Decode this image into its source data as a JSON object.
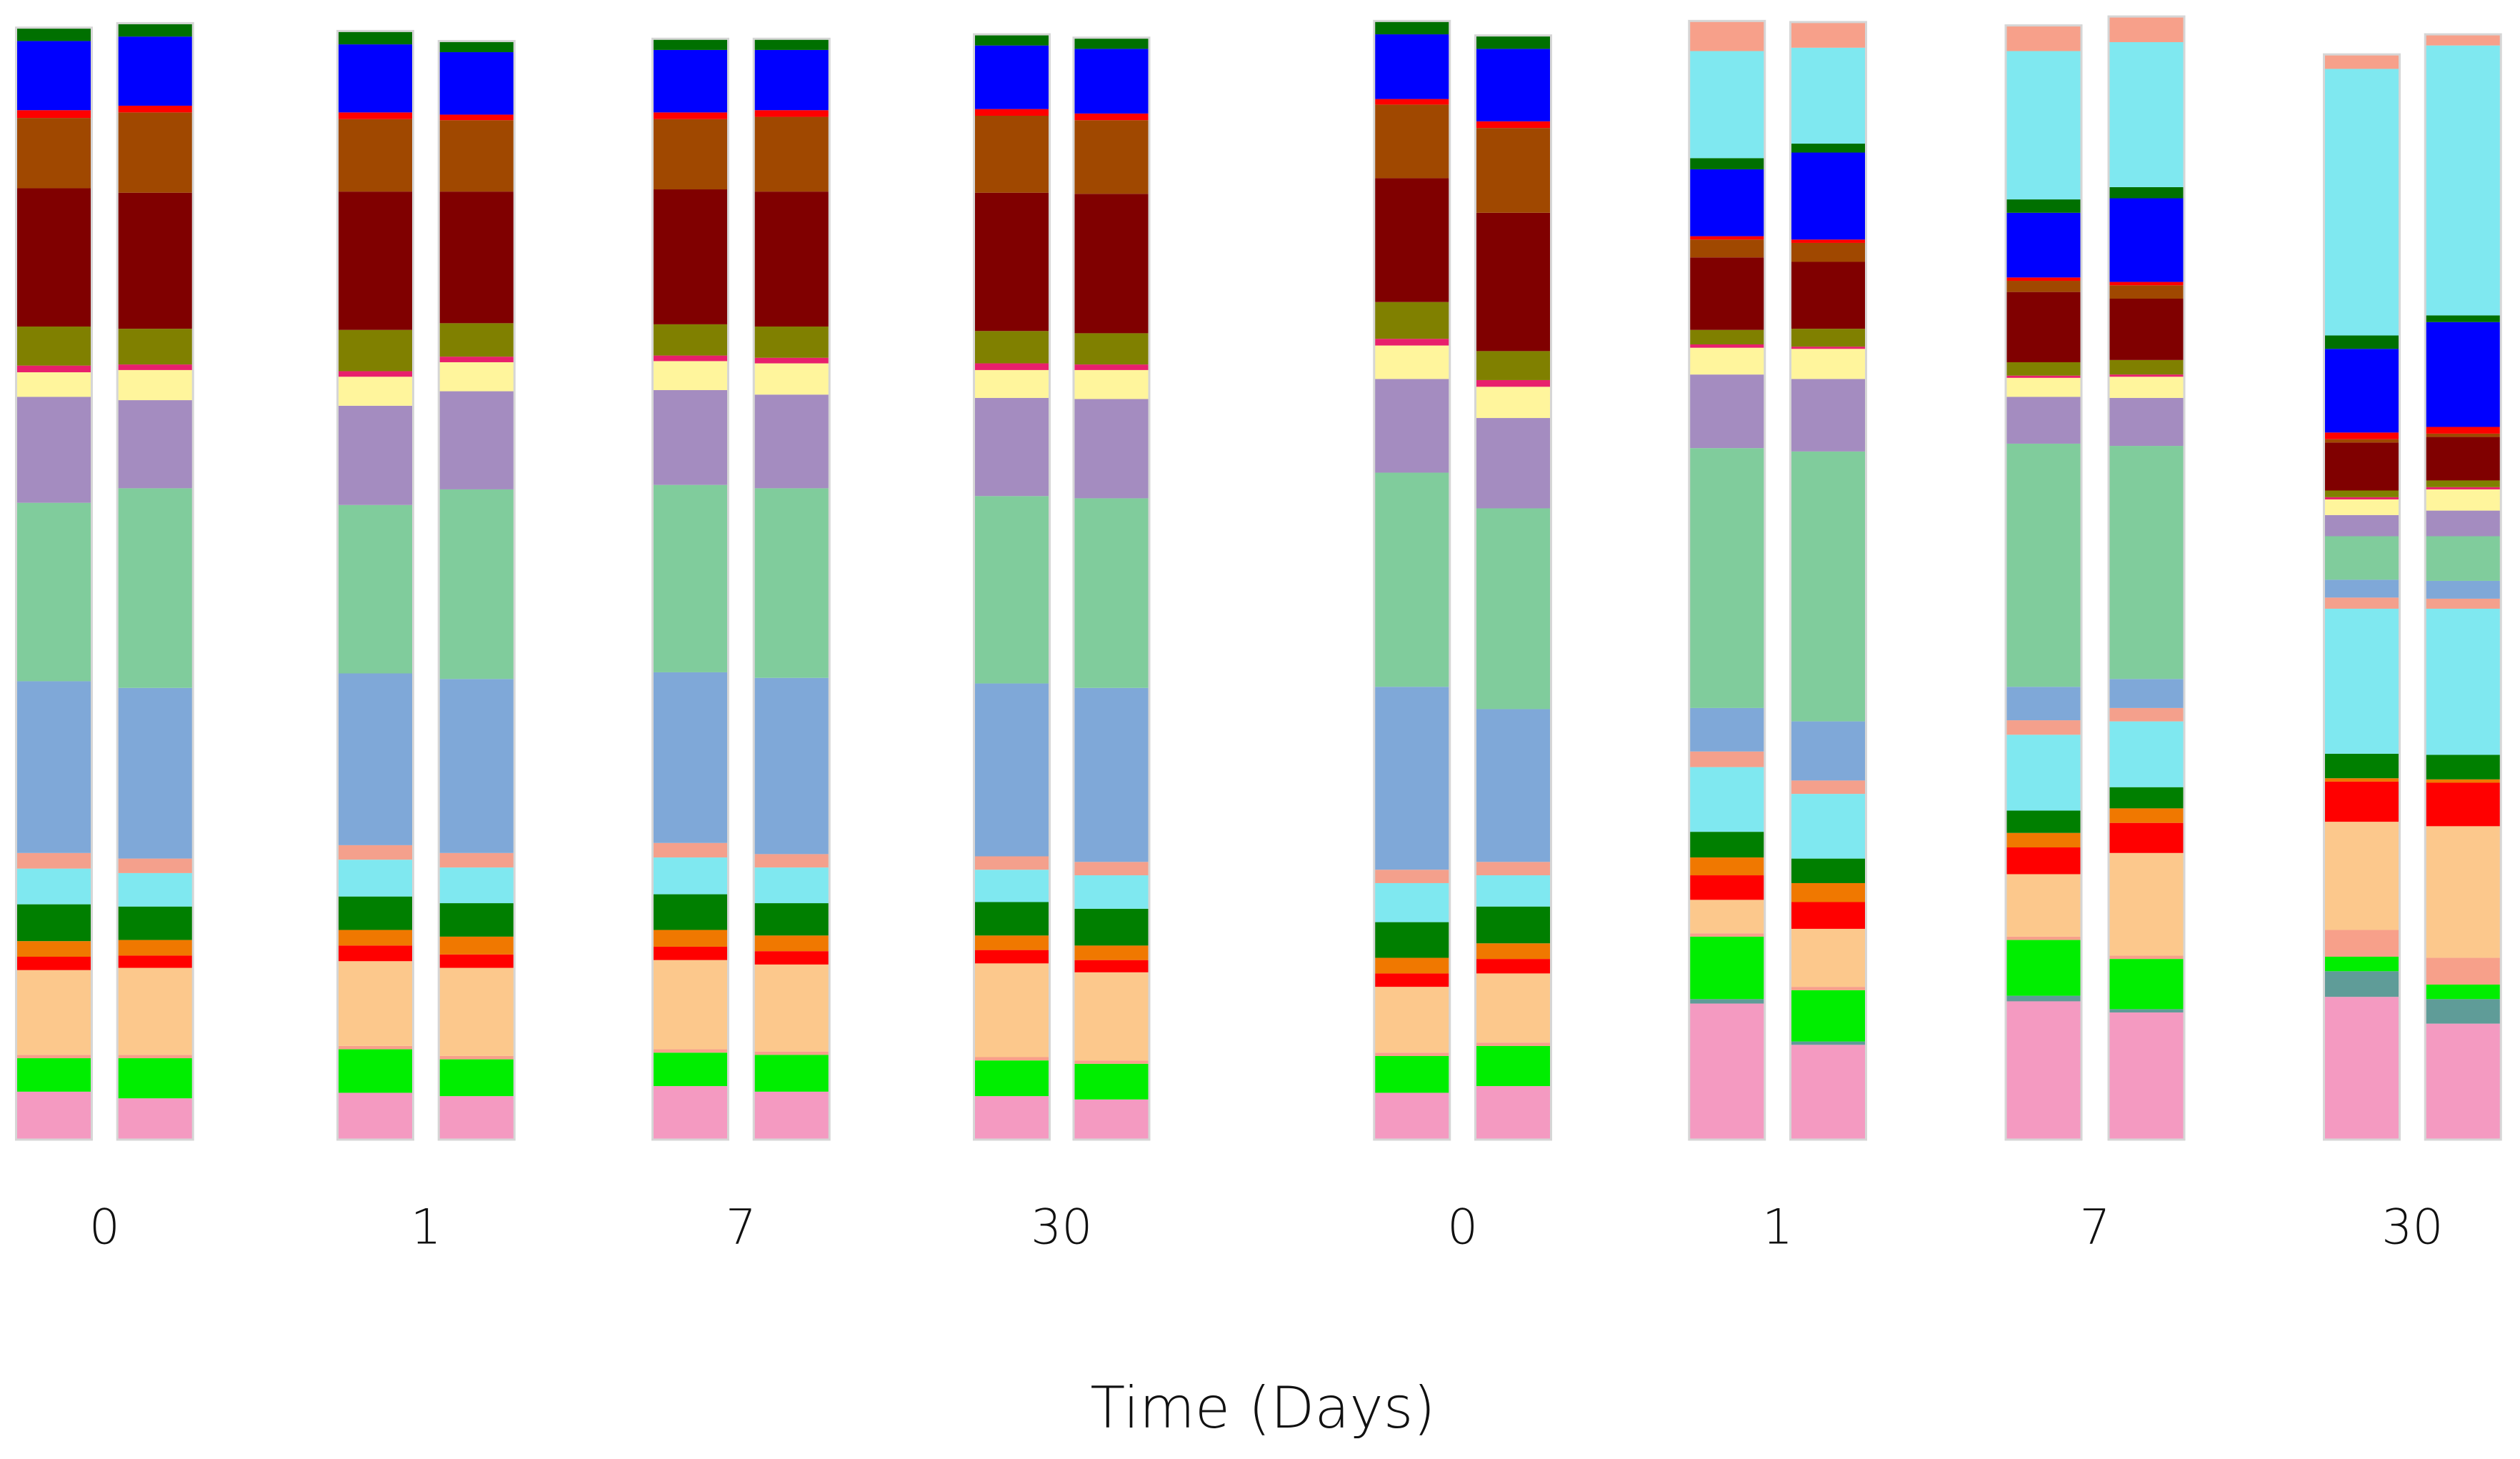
{
  "chart_data": {
    "type": "bar",
    "stacked": true,
    "x_label": "Time (Days)",
    "categories": [
      "0",
      null,
      "1",
      null,
      "7",
      null,
      "30",
      null,
      "0",
      null,
      "1",
      null,
      "7",
      null,
      "30",
      null
    ],
    "ylim": [
      0,
      100
    ],
    "series": [
      {
        "color": "#f49ac1",
        "values": [
          4.3,
          3.7,
          4.2,
          3.9,
          4.8,
          4.3,
          3.9,
          3.6,
          4.2,
          4.8,
          12.2,
          8.5,
          12.4,
          11.4,
          12.8,
          10.4
        ]
      },
      {
        "color": "#5f9c98",
        "values": [
          0,
          0,
          0,
          0,
          0,
          0,
          0,
          0,
          0,
          0,
          0.4,
          0.3,
          0.5,
          0.3,
          2.3,
          2.2
        ]
      },
      {
        "color": "#00ee00",
        "values": [
          3.0,
          3.6,
          3.9,
          3.3,
          3.0,
          3.3,
          3.2,
          3.2,
          3.3,
          3.6,
          5.6,
          4.6,
          5.0,
          4.5,
          1.3,
          1.3
        ]
      },
      {
        "color": "#f7a08a",
        "values": [
          0.3,
          0.3,
          0.3,
          0.3,
          0.3,
          0.3,
          0.3,
          0.3,
          0.3,
          0.3,
          0.3,
          0.3,
          0.3,
          0.3,
          2.4,
          2.4
        ]
      },
      {
        "color": "#fcc88c",
        "values": [
          7.6,
          7.8,
          7.6,
          7.9,
          8.0,
          7.8,
          8.4,
          7.9,
          5.9,
          6.2,
          3.0,
          5.2,
          5.6,
          9.2,
          9.7,
          11.8
        ]
      },
      {
        "color": "#ff0000",
        "values": [
          1.2,
          1.1,
          1.4,
          1.2,
          1.2,
          1.2,
          1.2,
          1.1,
          1.2,
          1.3,
          2.2,
          2.4,
          2.4,
          2.7,
          3.6,
          3.9
        ]
      },
      {
        "color": "#f07800",
        "values": [
          1.4,
          1.4,
          1.4,
          1.6,
          1.5,
          1.4,
          1.3,
          1.3,
          1.4,
          1.4,
          1.6,
          1.7,
          1.3,
          1.3,
          0.3,
          0.3
        ]
      },
      {
        "color": "#007f00",
        "values": [
          3.3,
          3.0,
          3.0,
          3.0,
          3.2,
          2.9,
          3.0,
          3.3,
          3.2,
          3.3,
          2.3,
          2.2,
          2.0,
          1.9,
          2.2,
          2.2
        ]
      },
      {
        "color": "#7fe8f0",
        "values": [
          3.2,
          3.0,
          3.3,
          3.2,
          3.3,
          3.2,
          2.9,
          3.0,
          3.5,
          2.8,
          5.8,
          5.8,
          6.8,
          5.9,
          13.0,
          13.1
        ]
      },
      {
        "color": "#f4a08c",
        "values": [
          1.4,
          1.3,
          1.3,
          1.3,
          1.3,
          1.2,
          1.2,
          1.2,
          1.2,
          1.2,
          1.4,
          1.2,
          1.3,
          1.2,
          1.0,
          0.9
        ]
      },
      {
        "color": "#7fa8d8",
        "values": [
          15.4,
          15.3,
          15.4,
          15.6,
          15.3,
          15.8,
          15.5,
          15.6,
          16.4,
          13.7,
          3.9,
          5.3,
          3.0,
          2.6,
          1.6,
          1.6
        ]
      },
      {
        "color": "#80cc9c",
        "values": [
          16.0,
          17.9,
          15.1,
          17.0,
          16.8,
          17.0,
          16.8,
          17.0,
          19.2,
          18.0,
          23.3,
          24.2,
          21.8,
          20.9,
          3.9,
          4.0
        ]
      },
      {
        "color": "#a48cc0",
        "values": [
          9.5,
          7.9,
          8.9,
          8.8,
          8.5,
          8.4,
          8.8,
          8.9,
          8.4,
          8.1,
          6.6,
          6.5,
          4.2,
          4.3,
          1.9,
          2.3
        ]
      },
      {
        "color": "#fff59c",
        "values": [
          2.2,
          2.7,
          2.6,
          2.6,
          2.6,
          2.8,
          2.5,
          2.6,
          3.0,
          2.8,
          2.4,
          2.7,
          1.7,
          1.9,
          1.4,
          1.9
        ]
      },
      {
        "color": "#e8206c",
        "values": [
          0.6,
          0.5,
          0.5,
          0.5,
          0.5,
          0.5,
          0.6,
          0.5,
          0.6,
          0.6,
          0.3,
          0.2,
          0.2,
          0.2,
          0.2,
          0.2
        ]
      },
      {
        "color": "#808000",
        "values": [
          3.5,
          3.2,
          3.7,
          3.0,
          2.8,
          2.8,
          2.9,
          2.8,
          3.3,
          2.6,
          1.3,
          1.6,
          1.2,
          1.3,
          0.6,
          0.6
        ]
      },
      {
        "color": "#800000",
        "values": [
          12.4,
          12.2,
          12.4,
          11.8,
          12.1,
          12.1,
          12.4,
          12.5,
          11.1,
          12.4,
          6.5,
          6.0,
          6.3,
          5.5,
          4.3,
          3.9
        ]
      },
      {
        "color": "#a04800",
        "values": [
          6.3,
          7.2,
          6.5,
          6.4,
          6.3,
          6.7,
          6.9,
          6.6,
          6.6,
          7.6,
          1.6,
          1.7,
          1.0,
          1.2,
          0.3,
          0.3
        ]
      },
      {
        "color": "#ff0000",
        "values": [
          0.7,
          0.6,
          0.6,
          0.5,
          0.6,
          0.6,
          0.6,
          0.6,
          0.5,
          0.6,
          0.3,
          0.3,
          0.3,
          0.3,
          0.6,
          0.6
        ]
      },
      {
        "color": "#0000ff",
        "values": [
          6.2,
          6.2,
          6.1,
          5.6,
          5.6,
          5.4,
          5.7,
          5.8,
          5.8,
          6.5,
          6.0,
          7.8,
          5.8,
          7.5,
          7.5,
          9.4
        ]
      },
      {
        "color": "#007000",
        "values": [
          1.2,
          1.2,
          1.2,
          1.0,
          1.0,
          1.0,
          1.0,
          1.0,
          1.2,
          1.2,
          1.0,
          0.8,
          1.2,
          1.0,
          1.2,
          0.6
        ]
      },
      {
        "color": "#7fe8f0",
        "values": [
          0,
          0,
          0,
          0,
          0,
          0,
          0,
          0,
          0,
          0,
          9.6,
          8.6,
          13.3,
          13.0,
          23.9,
          24.2
        ]
      },
      {
        "color": "#f7a08a",
        "values": [
          0,
          0,
          0,
          0,
          0,
          0,
          0,
          0,
          0,
          0,
          2.7,
          2.3,
          2.3,
          2.3,
          1.3,
          1.0
        ]
      }
    ]
  }
}
